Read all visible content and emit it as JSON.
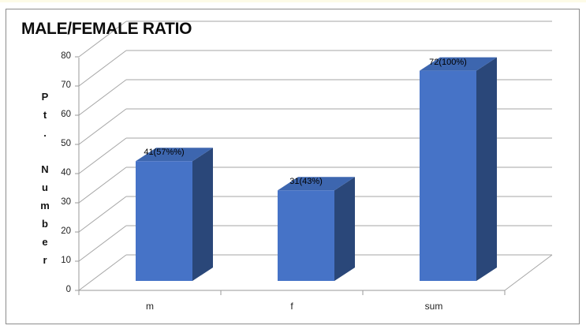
{
  "page": {
    "top_edge_color": "#fdfbe7",
    "background": "#ffffff"
  },
  "chart": {
    "title": "MALE/FEMALE RATIO",
    "border_color": "#8c8c8c",
    "gridline_color": "#a6a6a6",
    "axis_color": "#9a9a9a",
    "bar_front_color": "#4673c7",
    "bar_top_color": "#3d66af",
    "bar_side_color": "#2a4779"
  },
  "chart_data": {
    "type": "bar",
    "style": "3d-column",
    "title": "MALE/FEMALE RATIO",
    "ylabel": "Pt. Number",
    "xlabel": "",
    "categories": [
      "m",
      "f",
      "sum"
    ],
    "values": [
      41,
      31,
      72
    ],
    "data_labels": [
      "41(57%%)",
      "31(43%)",
      "72(100%)"
    ],
    "ylim": [
      0,
      80
    ],
    "ytick_step": 10,
    "yticks": [
      0,
      10,
      20,
      30,
      40,
      50,
      60,
      70,
      80
    ],
    "grid": true,
    "legend": false
  }
}
